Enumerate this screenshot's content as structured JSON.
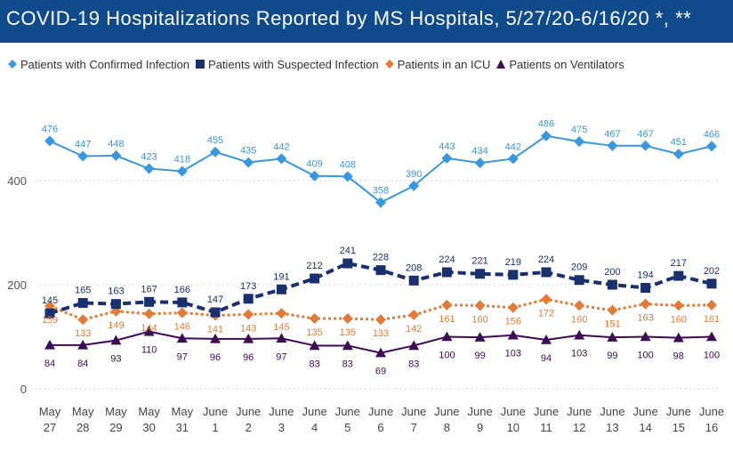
{
  "title": "COVID-19 Hospitalizations Reported by MS Hospitals, 5/27/20-6/16/20 *, **",
  "chart_data": {
    "type": "line",
    "title": "COVID-19 Hospitalizations Reported by MS Hospitals, 5/27/20-6/16/20 *, **",
    "xlabel": "",
    "ylabel": "",
    "ylim": [
      0,
      500
    ],
    "y_ticks": [
      0,
      200,
      400
    ],
    "grid": "horizontal dotted",
    "legend_position": "top",
    "categories": [
      [
        "May",
        "27"
      ],
      [
        "May",
        "28"
      ],
      [
        "May",
        "29"
      ],
      [
        "May",
        "30"
      ],
      [
        "May",
        "31"
      ],
      [
        "June",
        "1"
      ],
      [
        "June",
        "2"
      ],
      [
        "June",
        "3"
      ],
      [
        "June",
        "4"
      ],
      [
        "June",
        "5"
      ],
      [
        "June",
        "6"
      ],
      [
        "June",
        "7"
      ],
      [
        "June",
        "8"
      ],
      [
        "June",
        "9"
      ],
      [
        "June",
        "10"
      ],
      [
        "June",
        "11"
      ],
      [
        "June",
        "12"
      ],
      [
        "June",
        "13"
      ],
      [
        "June",
        "14"
      ],
      [
        "June",
        "15"
      ],
      [
        "June",
        "16"
      ]
    ],
    "series": [
      {
        "name": "Patients with Confirmed Infection",
        "color": "#3a96dd",
        "marker": "diamond",
        "line": "solid",
        "values": [
          476,
          447,
          448,
          423,
          418,
          455,
          435,
          442,
          409,
          408,
          358,
          390,
          443,
          434,
          442,
          486,
          475,
          467,
          467,
          451,
          466
        ]
      },
      {
        "name": "Patients with Suspected Infection",
        "color": "#1a2f6e",
        "marker": "square",
        "line": "dashed",
        "values": [
          145,
          165,
          163,
          167,
          166,
          147,
          173,
          191,
          212,
          241,
          228,
          208,
          224,
          221,
          219,
          224,
          209,
          200,
          194,
          217,
          202
        ]
      },
      {
        "name": "Patients in an ICU",
        "color": "#e07b39",
        "marker": "diamond",
        "line": "dotted",
        "values": [
          159,
          133,
          149,
          144,
          146,
          141,
          143,
          145,
          135,
          135,
          133,
          142,
          161,
          160,
          156,
          172,
          160,
          151,
          163,
          160,
          161
        ]
      },
      {
        "name": "Patients on Ventilators",
        "color": "#3d0a55",
        "marker": "triangle",
        "line": "solid",
        "values": [
          84,
          84,
          93,
          110,
          97,
          96,
          96,
          97,
          83,
          83,
          69,
          83,
          100,
          99,
          103,
          94,
          103,
          99,
          100,
          98,
          100
        ]
      }
    ]
  }
}
